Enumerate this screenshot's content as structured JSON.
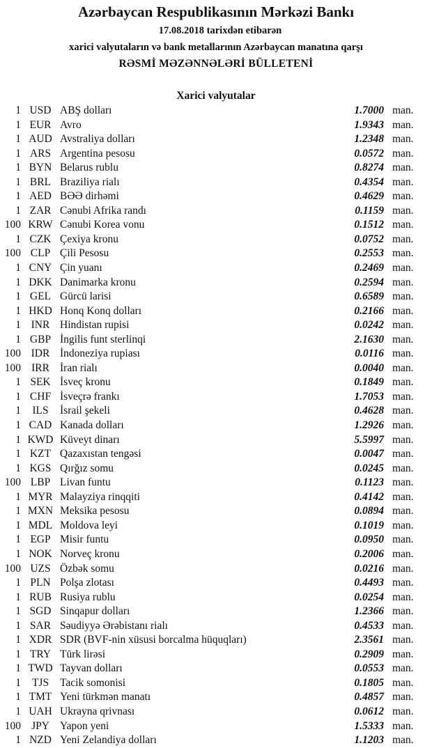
{
  "header": {
    "title": "Azərbaycan Respublikasının Mərkəzi Bankı",
    "date_line": "17.08.2018  tarixdən etibarən",
    "subtitle": "xarici valyutaların və bank metallarının Azərbaycan manatına qarşı",
    "bulletin": "RƏSMİ MƏZƏNNƏLƏRİ BÜLLETENİ"
  },
  "section_title": "Xarici valyutalar",
  "unit_label": "man.",
  "currencies": [
    {
      "amount": "1",
      "code": "USD",
      "name": "ABŞ dolları",
      "rate": "1.7000"
    },
    {
      "amount": "1",
      "code": "EUR",
      "name": "Avro",
      "rate": "1.9343"
    },
    {
      "amount": "1",
      "code": "AUD",
      "name": "Avstraliya dolları",
      "rate": "1.2348"
    },
    {
      "amount": "1",
      "code": "ARS",
      "name": "Argentina pesosu",
      "rate": "0.0572"
    },
    {
      "amount": "1",
      "code": "BYN",
      "name": "Belarus rublu",
      "rate": "0.8274"
    },
    {
      "amount": "1",
      "code": "BRL",
      "name": "Braziliya rialı",
      "rate": "0.4354"
    },
    {
      "amount": "1",
      "code": "AED",
      "name": "BƏƏ dirhəmi",
      "rate": "0.4629"
    },
    {
      "amount": "1",
      "code": "ZAR",
      "name": "Cənubi Afrika randı",
      "rate": "0.1159"
    },
    {
      "amount": "100",
      "code": "KRW",
      "name": "Cənubi Korea vonu",
      "rate": "0.1512"
    },
    {
      "amount": "1",
      "code": "CZK",
      "name": "Çexiya kronu",
      "rate": "0.0752"
    },
    {
      "amount": "100",
      "code": "CLP",
      "name": "Çili Pesosu",
      "rate": "0.2553"
    },
    {
      "amount": "1",
      "code": "CNY",
      "name": "Çin yuanı",
      "rate": "0.2469"
    },
    {
      "amount": "1",
      "code": "DKK",
      "name": "Danimarka kronu",
      "rate": "0.2594"
    },
    {
      "amount": "1",
      "code": "GEL",
      "name": "Gürcü larisi",
      "rate": "0.6589"
    },
    {
      "amount": "1",
      "code": "HKD",
      "name": "Honq Konq dolları",
      "rate": "0.2166"
    },
    {
      "amount": "1",
      "code": "INR",
      "name": "Hindistan rupisi",
      "rate": "0.0242"
    },
    {
      "amount": "1",
      "code": "GBP",
      "name": "İngilis funt sterlinqi",
      "rate": "2.1630"
    },
    {
      "amount": "100",
      "code": "IDR",
      "name": "İndoneziya rupiası",
      "rate": "0.0116"
    },
    {
      "amount": "100",
      "code": "IRR",
      "name": "İran rialı",
      "rate": "0.0040"
    },
    {
      "amount": "1",
      "code": "SEK",
      "name": "İsveç kronu",
      "rate": "0.1849"
    },
    {
      "amount": "1",
      "code": "CHF",
      "name": "İsveçrə frankı",
      "rate": "1.7053"
    },
    {
      "amount": "1",
      "code": "ILS",
      "name": "İsrail şekeli",
      "rate": "0.4628"
    },
    {
      "amount": "1",
      "code": "CAD",
      "name": "Kanada dolları",
      "rate": "1.2926"
    },
    {
      "amount": "1",
      "code": "KWD",
      "name": "Küveyt dinarı",
      "rate": "5.5997"
    },
    {
      "amount": "1",
      "code": "KZT",
      "name": "Qazaxıstan tengəsi",
      "rate": "0.0047"
    },
    {
      "amount": "1",
      "code": "KGS",
      "name": "Qırğız somu",
      "rate": "0.0245"
    },
    {
      "amount": "100",
      "code": "LBP",
      "name": "Livan funtu",
      "rate": "0.1123"
    },
    {
      "amount": "1",
      "code": "MYR",
      "name": "Malayziya rinqqiti",
      "rate": "0.4142"
    },
    {
      "amount": "1",
      "code": "MXN",
      "name": "Meksika pesosu",
      "rate": "0.0894"
    },
    {
      "amount": "1",
      "code": "MDL",
      "name": "Moldova leyi",
      "rate": "0.1019"
    },
    {
      "amount": "1",
      "code": "EGP",
      "name": "Misir funtu",
      "rate": "0.0950"
    },
    {
      "amount": "1",
      "code": "NOK",
      "name": "Norveç kronu",
      "rate": "0.2006"
    },
    {
      "amount": "100",
      "code": "UZS",
      "name": "Özbək somu",
      "rate": "0.0216"
    },
    {
      "amount": "1",
      "code": "PLN",
      "name": "Polşa zlotası",
      "rate": "0.4493"
    },
    {
      "amount": "1",
      "code": "RUB",
      "name": "Rusiya rublu",
      "rate": "0.0254"
    },
    {
      "amount": "1",
      "code": "SGD",
      "name": "Sinqapur dolları",
      "rate": "1.2366"
    },
    {
      "amount": "1",
      "code": "SAR",
      "name": "Səudiyyə Ərəbistanı rialı",
      "rate": "0.4533"
    },
    {
      "amount": "1",
      "code": "XDR",
      "name": "SDR (BVF-nin xüsusi borcalma hüquqları)",
      "rate": "2.3561"
    },
    {
      "amount": "1",
      "code": "TRY",
      "name": "Türk lirəsi",
      "rate": "0.2909"
    },
    {
      "amount": "1",
      "code": "TWD",
      "name": "Tayvan dolları",
      "rate": "0.0553"
    },
    {
      "amount": "1",
      "code": "TJS",
      "name": "Tacik somonisi",
      "rate": "0.1805"
    },
    {
      "amount": "1",
      "code": "TMT",
      "name": "Yeni türkmən manatı",
      "rate": "0.4857"
    },
    {
      "amount": "1",
      "code": "UAH",
      "name": "Ukrayna qrivnası",
      "rate": "0.0612"
    },
    {
      "amount": "100",
      "code": "JPY",
      "name": "Yapon yeni",
      "rate": "1.5333"
    },
    {
      "amount": "1",
      "code": "NZD",
      "name": "Yeni Zelandiya dolları",
      "rate": "1.1203"
    }
  ]
}
